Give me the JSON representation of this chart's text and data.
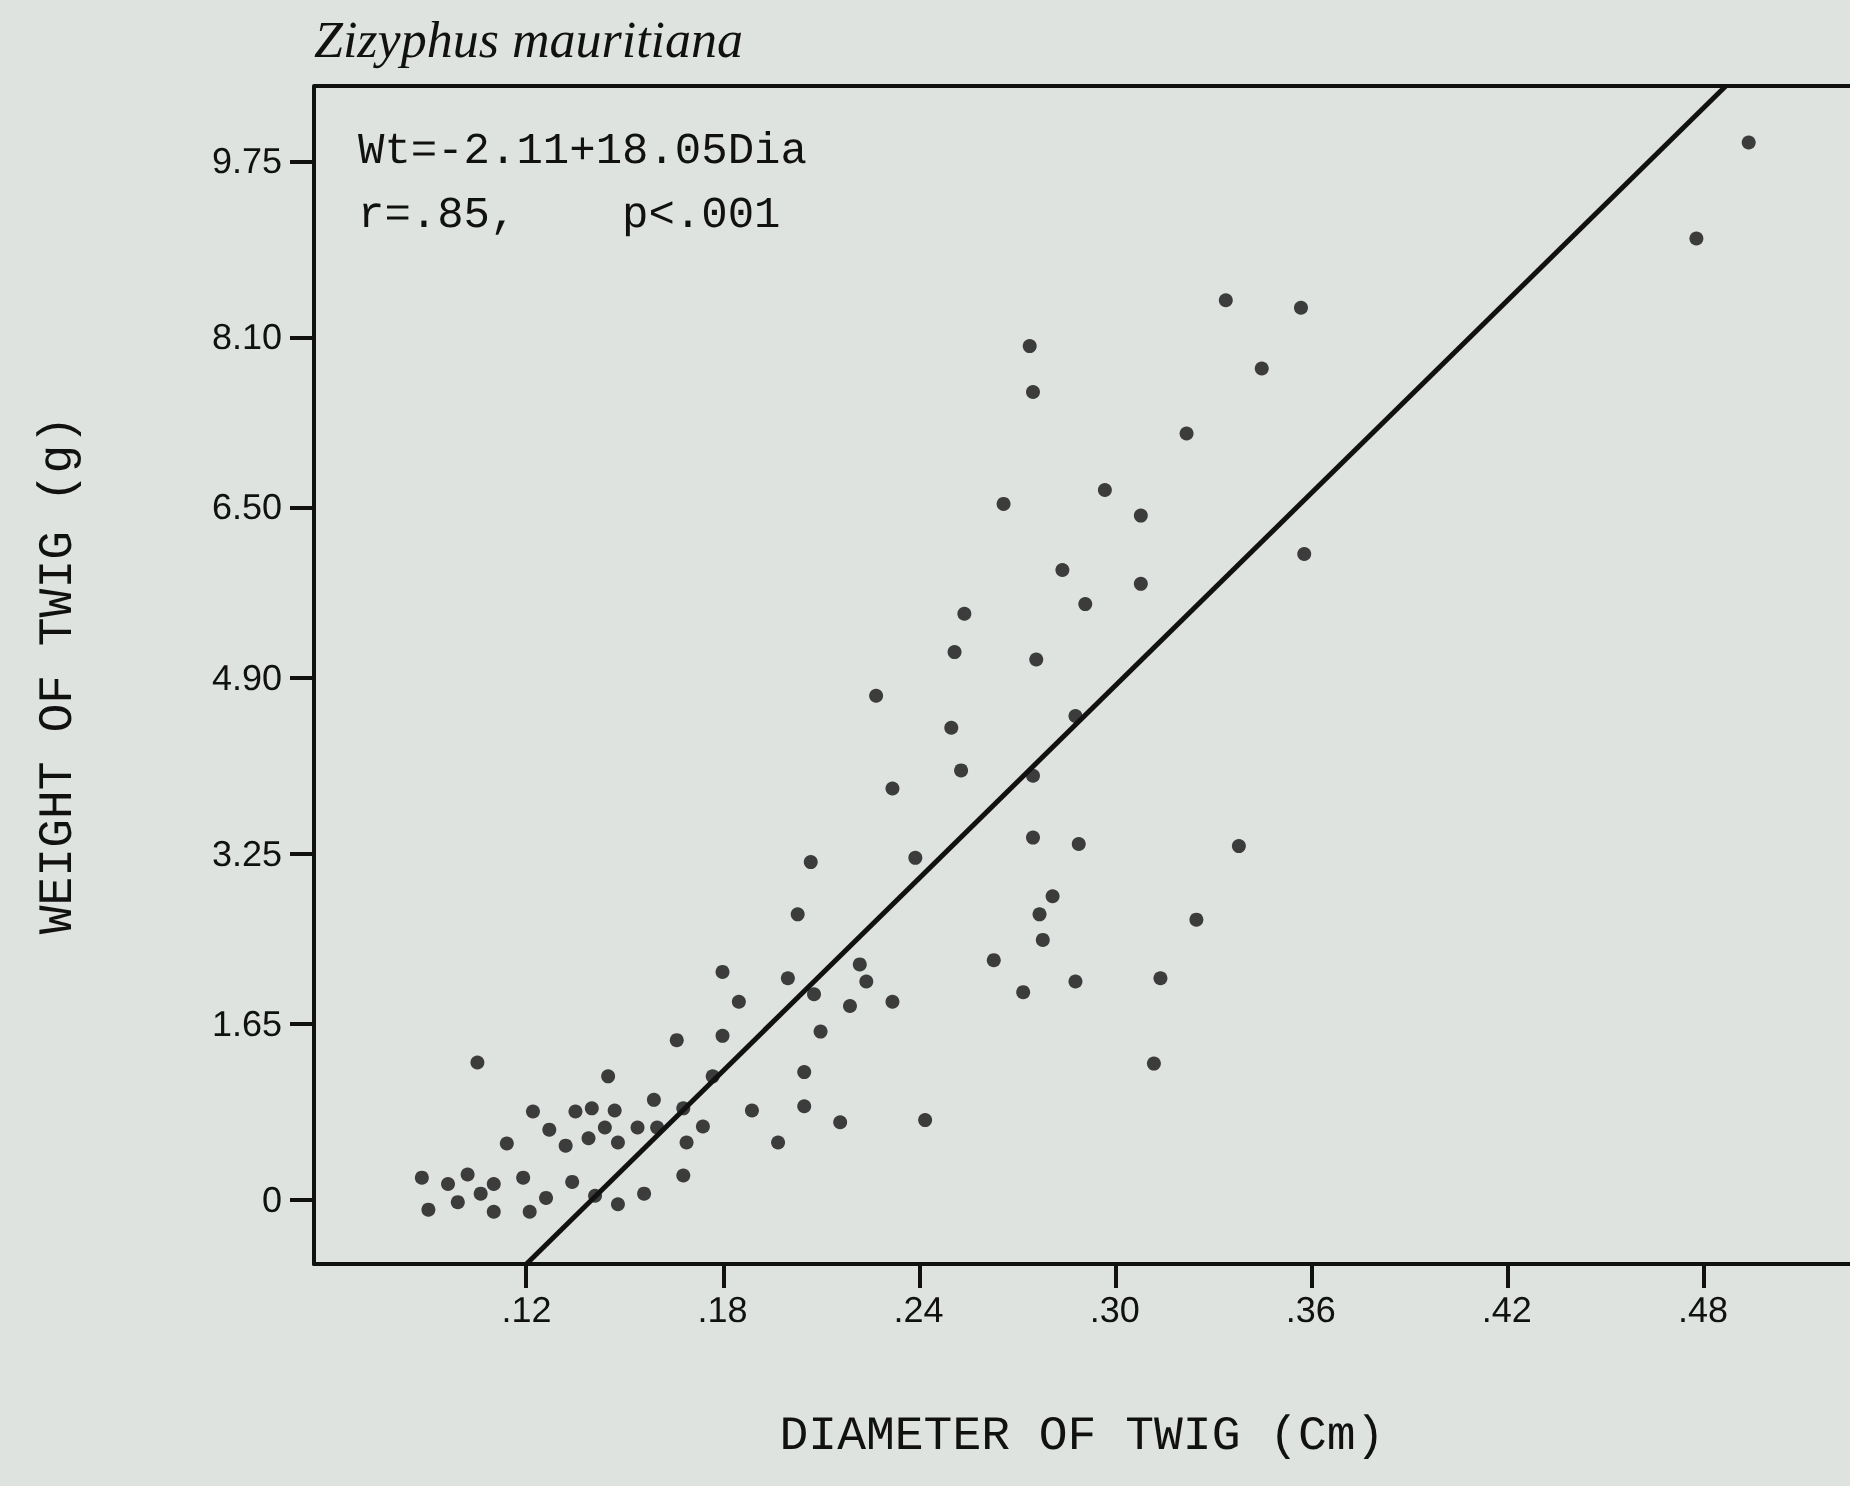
{
  "chart_data": {
    "type": "scatter",
    "title": "Zizyphus mauritiana",
    "xlabel": "DIAMETER OF TWIG (Cm)",
    "ylabel": "WEIGHT OF TWIG (g)",
    "annotations": [
      "Wt=-2.11+18.05Dia",
      "r=.85,    p<.001"
    ],
    "xlim": [
      0.055,
      0.525
    ],
    "ylim": [
      -0.6,
      10.45
    ],
    "xticks": [
      {
        "value": 0.12,
        "label": ".12"
      },
      {
        "value": 0.18,
        "label": ".18"
      },
      {
        "value": 0.24,
        "label": ".24"
      },
      {
        "value": 0.3,
        "label": ".30"
      },
      {
        "value": 0.36,
        "label": ".36"
      },
      {
        "value": 0.42,
        "label": ".42"
      },
      {
        "value": 0.48,
        "label": ".48"
      }
    ],
    "yticks": [
      0,
      1.65,
      3.25,
      {
        "value": 4.9,
        "label": "4.90"
      },
      {
        "value": 6.5,
        "label": "6.50"
      },
      {
        "value": 8.1,
        "label": "8.10"
      },
      9.75
    ],
    "grid": false,
    "series": [
      {
        "marker": "circle",
        "color": "#111111",
        "x": [
          0.088,
          0.09,
          0.096,
          0.099,
          0.102,
          0.105,
          0.106,
          0.11,
          0.11,
          0.114,
          0.119,
          0.121,
          0.122,
          0.126,
          0.127,
          0.132,
          0.135,
          0.134,
          0.14,
          0.139,
          0.141,
          0.144,
          0.145,
          0.147,
          0.148,
          0.148,
          0.154,
          0.156,
          0.159,
          0.16,
          0.166,
          0.168,
          0.168,
          0.169,
          0.174,
          0.177,
          0.18,
          0.18,
          0.185,
          0.189,
          0.197,
          0.2,
          0.203,
          0.205,
          0.205,
          0.207,
          0.208,
          0.21,
          0.216,
          0.219,
          0.222,
          0.224,
          0.232,
          0.232,
          0.227,
          0.239,
          0.242,
          0.251,
          0.334,
          0.357,
          0.274,
          0.275,
          0.345,
          0.322,
          0.297,
          0.266,
          0.308,
          0.358,
          0.284,
          0.308,
          0.291,
          0.254,
          0.276,
          0.25,
          0.288,
          0.253,
          0.275,
          0.275,
          0.289,
          0.338,
          0.281,
          0.277,
          0.325,
          0.278,
          0.263,
          0.314,
          0.288,
          0.272,
          0.312,
          0.494,
          0.478
        ],
        "values": [
          0.21,
          -0.09,
          0.15,
          -0.02,
          0.24,
          1.29,
          0.06,
          0.15,
          -0.11,
          0.53,
          0.21,
          -0.11,
          0.83,
          0.02,
          0.66,
          0.51,
          0.83,
          0.17,
          0.86,
          0.58,
          0.04,
          0.68,
          1.16,
          0.84,
          0.54,
          -0.04,
          0.68,
          0.06,
          0.94,
          0.68,
          1.5,
          0.86,
          0.23,
          0.54,
          0.69,
          1.16,
          1.54,
          2.14,
          1.86,
          0.84,
          0.54,
          2.08,
          2.68,
          0.88,
          1.2,
          3.17,
          1.93,
          1.58,
          0.73,
          1.82,
          2.21,
          2.05,
          1.86,
          3.86,
          4.73,
          3.21,
          0.75,
          5.14,
          8.44,
          8.37,
          8.01,
          7.58,
          7.8,
          7.19,
          6.66,
          6.53,
          6.42,
          6.06,
          5.91,
          5.78,
          5.59,
          5.5,
          5.07,
          4.43,
          4.54,
          4.03,
          3.98,
          3.4,
          3.34,
          3.32,
          2.85,
          2.68,
          2.63,
          2.44,
          2.25,
          2.08,
          2.05,
          1.95,
          1.28,
          9.92,
          9.02
        ]
      },
      {
        "type": "line",
        "marker": "none",
        "color": "#111111",
        "x": [
          0.12,
          0.487
        ],
        "values": [
          -0.6,
          10.45
        ]
      }
    ]
  }
}
